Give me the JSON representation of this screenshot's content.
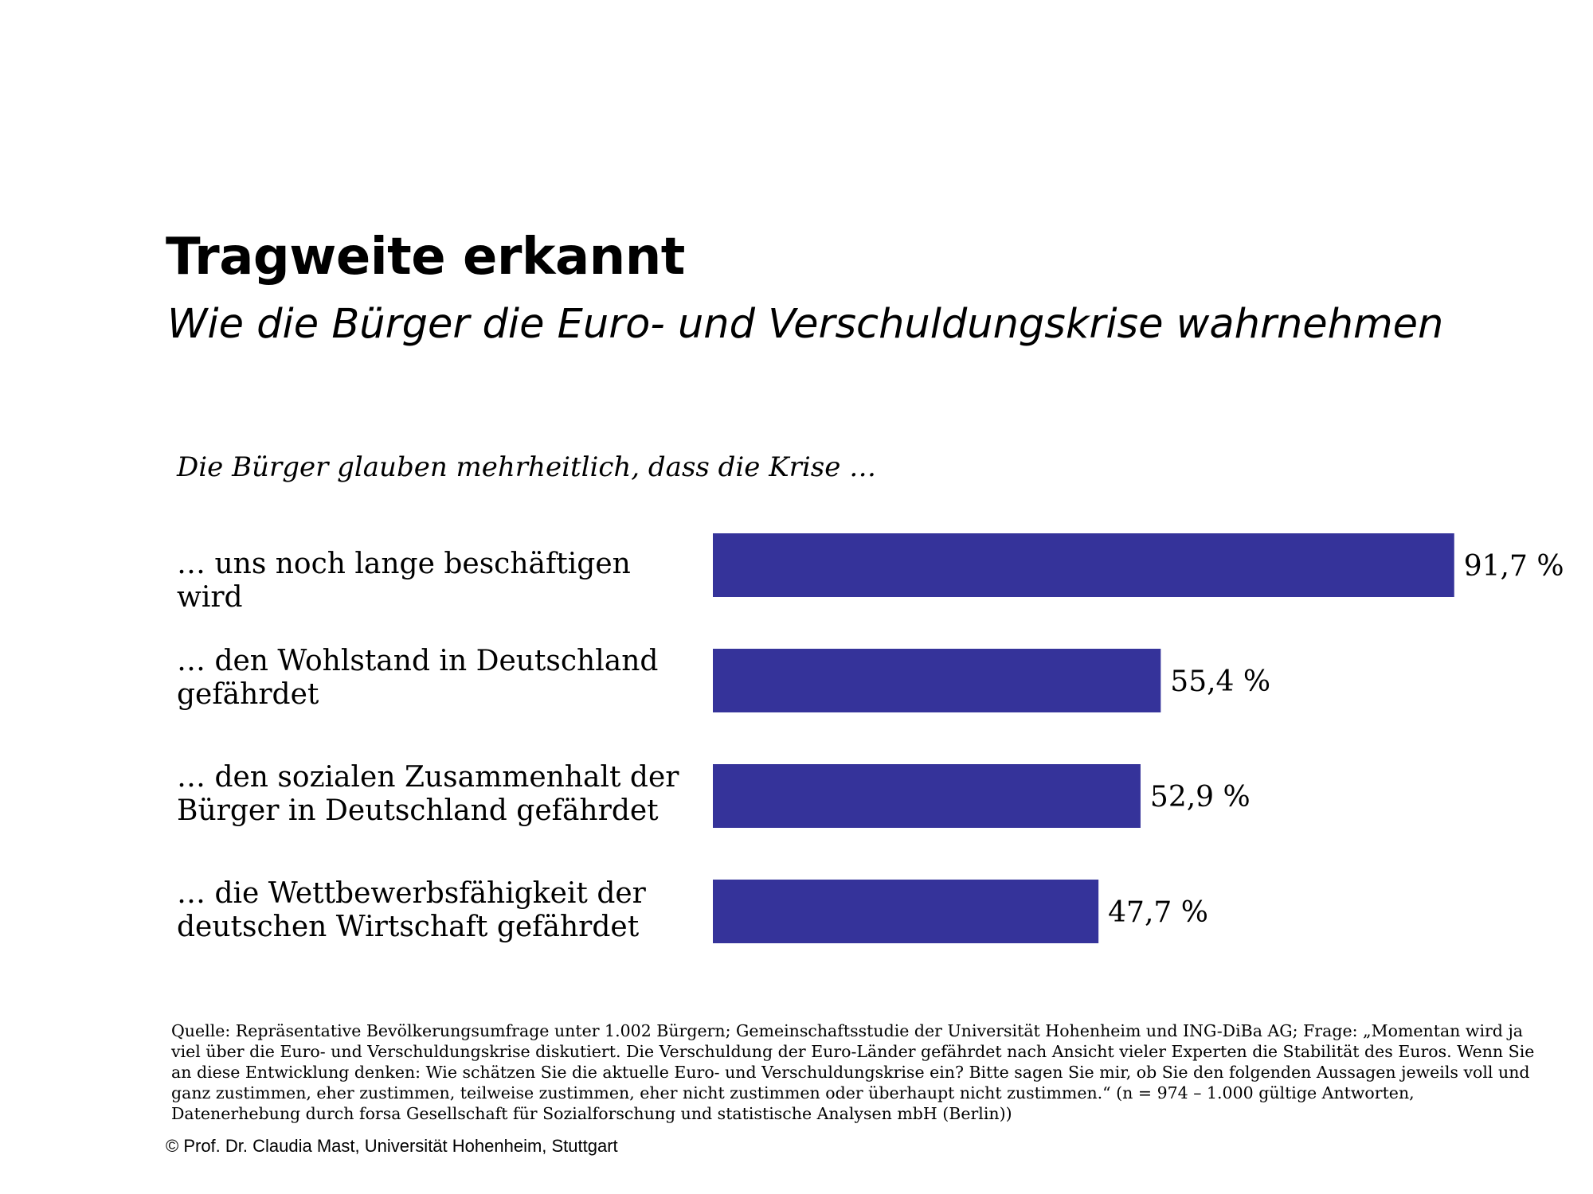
{
  "title": "Tragweite erkannt",
  "subtitle": "Wie die Bürger die Euro- und Verschuldungskrise wahrnehmen",
  "intro": "Die Bürger glauben mehrheitlich, dass die Krise …",
  "chart_data": {
    "type": "bar",
    "orientation": "horizontal",
    "categories": [
      "… uns noch lange beschäftigen wird",
      "… den Wohlstand in Deutschland gefährdet",
      "… den sozialen Zusammenhalt der Bürger in Deutschland gefährdet",
      "… die Wettbewerbsfähigkeit der deutschen Wirtschaft gefährdet"
    ],
    "values": [
      91.7,
      55.4,
      52.9,
      47.7
    ],
    "value_labels": [
      "91,7 %",
      "55,4 %",
      "52,9 %",
      "47,7 %"
    ],
    "unit": "%",
    "xlim": [
      0,
      100
    ],
    "bar_color": "#35339A",
    "grid": false,
    "legend": "none"
  },
  "source": "Quelle: Repräsentative Bevölkerungsumfrage unter 1.002 Bürgern; Gemeinschaftsstudie der Universität Hohenheim und ING-DiBa AG; Frage: „Momentan wird ja viel über die Euro- und Verschuldungskrise diskutiert. Die Verschuldung der Euro-Länder gefährdet nach Ansicht vieler Experten die Stabilität des Euros. Wenn Sie an diese Entwicklung denken: Wie schätzen Sie die aktuelle Euro- und Verschuldungskrise ein? Bitte sagen Sie mir, ob Sie den folgenden Aussagen jeweils voll und ganz zustimmen, eher zustimmen, teilweise zustimmen, eher nicht zustimmen oder überhaupt nicht zustimmen.“ (n = 974 – 1.000 gültige Antworten, Datenerhebung durch forsa Gesellschaft für Sozialforschung und statistische Analysen mbH (Berlin))",
  "copyright": "© Prof. Dr. Claudia Mast, Universität Hohenheim, Stuttgart"
}
